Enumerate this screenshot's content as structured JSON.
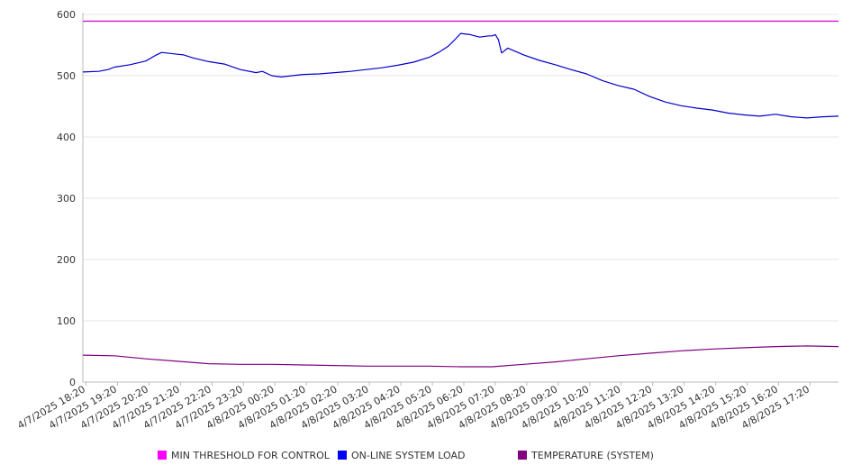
{
  "chart_data": {
    "type": "line",
    "title": "",
    "xlabel": "",
    "ylabel": "",
    "ylim": [
      0,
      600
    ],
    "y_ticks": [
      0,
      100,
      200,
      300,
      400,
      500,
      600
    ],
    "grid": "horizontal",
    "legend_position": "bottom",
    "x_range_hours": [
      0,
      24
    ],
    "x_tick_labels": [
      "4/7/2025 18:20",
      "4/7/2025 19:20",
      "4/7/2025 20:20",
      "4/7/2025 21:20",
      "4/7/2025 22:20",
      "4/7/2025 23:20",
      "4/8/2025 00:20",
      "4/8/2025 01:20",
      "4/8/2025 02:20",
      "4/8/2025 03:20",
      "4/8/2025 04:20",
      "4/8/2025 05:20",
      "4/8/2025 06:20",
      "4/8/2025 07:20",
      "4/8/2025 08:20",
      "4/8/2025 09:20",
      "4/8/2025 10:20",
      "4/8/2025 11:20",
      "4/8/2025 12:20",
      "4/8/2025 13:20",
      "4/8/2025 14:20",
      "4/8/2025 15:20",
      "4/8/2025 16:20",
      "4/8/2025 17:20"
    ],
    "x_tick_hours": [
      0.1,
      1.1,
      2.1,
      3.1,
      4.1,
      5.1,
      6.1,
      7.1,
      8.1,
      9.1,
      10.1,
      11.1,
      12.1,
      13.1,
      14.1,
      15.1,
      16.1,
      17.1,
      18.1,
      19.1,
      20.1,
      21.1,
      22.1,
      23.1
    ],
    "series": [
      {
        "name": "MIN THRESHOLD FOR CONTROL",
        "color": "#cc00cc",
        "x": [
          0,
          24
        ],
        "y": [
          589,
          589
        ]
      },
      {
        "name": "ON-LINE SYSTEM LOAD",
        "color": "#0000cc",
        "x": [
          0,
          0.5,
          0.8,
          1.0,
          1.5,
          2.0,
          2.3,
          2.5,
          3.0,
          3.2,
          3.5,
          4.0,
          4.5,
          5.0,
          5.5,
          5.7,
          6.0,
          6.3,
          7.0,
          7.5,
          8.0,
          8.5,
          9.0,
          9.5,
          10.0,
          10.5,
          11.0,
          11.3,
          11.6,
          11.8,
          12.0,
          12.3,
          12.6,
          12.9,
          13.0,
          13.1,
          13.2,
          13.3,
          13.5,
          14.0,
          14.5,
          15.0,
          15.5,
          16.0,
          16.5,
          17.0,
          17.5,
          18.0,
          18.5,
          19.0,
          19.5,
          20.0,
          20.5,
          21.0,
          21.5,
          22.0,
          22.5,
          23.0,
          23.5,
          24.0
        ],
        "y": [
          506,
          507,
          510,
          514,
          518,
          524,
          533,
          538,
          535,
          534,
          529,
          523,
          519,
          510,
          505,
          507,
          500,
          498,
          502,
          503,
          505,
          507,
          510,
          513,
          517,
          522,
          530,
          538,
          548,
          558,
          569,
          567,
          563,
          565,
          565,
          567,
          559,
          537,
          545,
          534,
          525,
          518,
          510,
          503,
          492,
          484,
          478,
          466,
          457,
          451,
          447,
          444,
          439,
          436,
          434,
          437,
          433,
          431,
          433,
          434
        ]
      },
      {
        "name": "TEMPERATURE (SYSTEM)",
        "color": "#800080",
        "x": [
          0,
          1,
          2,
          3,
          4,
          5,
          6,
          7,
          8,
          9,
          10,
          11,
          12,
          13,
          14,
          15,
          16,
          17,
          18,
          19,
          20,
          21,
          22,
          23,
          24
        ],
        "y": [
          44,
          43,
          38,
          34,
          30,
          29,
          29,
          28,
          27,
          26,
          26,
          26,
          25,
          25,
          29,
          33,
          38,
          43,
          47,
          51,
          54,
          56,
          58,
          59,
          58
        ]
      }
    ]
  }
}
